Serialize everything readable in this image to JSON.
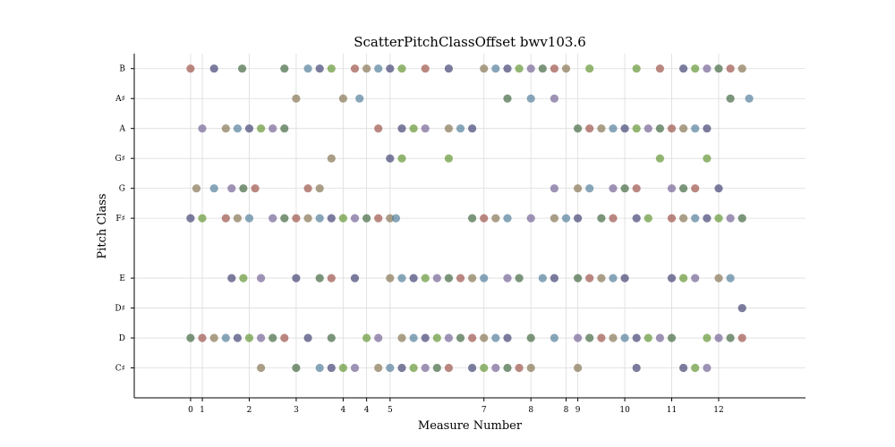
{
  "chart_data": {
    "type": "scatter",
    "title": "ScatterPitchClassOffset bwv103.6",
    "xlabel": "Measure Number",
    "ylabel": "Pitch Class",
    "xlim": [
      -1.2,
      13.1
    ],
    "ylim": [
      -1.0,
      10.5
    ],
    "grid": true,
    "x_ticks": [
      {
        "value": 0,
        "label": "0"
      },
      {
        "value": 0.25,
        "label": "1"
      },
      {
        "value": 1.25,
        "label": "2"
      },
      {
        "value": 2.25,
        "label": "3"
      },
      {
        "value": 3.25,
        "label": "4"
      },
      {
        "value": 3.75,
        "label": "4"
      },
      {
        "value": 4.25,
        "label": "5"
      },
      {
        "value": 6.25,
        "label": "7"
      },
      {
        "value": 7.25,
        "label": "8"
      },
      {
        "value": 8.0,
        "label": "8"
      },
      {
        "value": 8.25,
        "label": "9"
      },
      {
        "value": 9.25,
        "label": "10"
      },
      {
        "value": 10.25,
        "label": "11"
      },
      {
        "value": 11.25,
        "label": "12"
      }
    ],
    "y_ticks": [
      {
        "value": 0,
        "label": "C♯"
      },
      {
        "value": 1,
        "label": "D"
      },
      {
        "value": 2,
        "label": "D♯"
      },
      {
        "value": 3,
        "label": "E"
      },
      {
        "value": 5,
        "label": "F♯"
      },
      {
        "value": 6,
        "label": "G"
      },
      {
        "value": 7,
        "label": "G♯"
      },
      {
        "value": 8,
        "label": "A"
      },
      {
        "value": 9,
        "label": "A♯"
      },
      {
        "value": 10,
        "label": "B"
      }
    ],
    "palette": [
      "#a05a50",
      "#5a84a0",
      "#6a9a3c",
      "#4a6e4a",
      "#8a7a5a",
      "#4a4a78",
      "#7a6a9a"
    ],
    "points": [
      {
        "y": 10,
        "x": [
          0,
          0.5,
          1.1,
          2.0,
          2.5,
          2.75,
          3.0,
          3.5,
          3.75,
          4.0,
          4.25,
          4.5,
          5.0,
          5.5,
          6.25,
          6.5,
          6.75,
          7.0,
          7.25,
          7.5,
          7.75,
          8.0,
          8.5,
          9.5,
          10.0,
          10.5,
          10.75,
          11.0,
          11.25,
          11.5,
          11.75
        ]
      },
      {
        "y": 9,
        "x": [
          2.25,
          3.25,
          3.6,
          6.75,
          7.25,
          7.75,
          11.5,
          11.9
        ]
      },
      {
        "y": 8,
        "x": [
          0.25,
          0.75,
          1.0,
          1.25,
          1.5,
          1.75,
          2.0,
          4.0,
          4.5,
          4.75,
          5.0,
          5.5,
          5.75,
          6.0,
          8.25,
          8.5,
          8.75,
          9.0,
          9.25,
          9.5,
          9.75,
          10.0,
          10.25,
          10.5,
          10.75,
          11.0
        ]
      },
      {
        "y": 7,
        "x": [
          3.0,
          4.25,
          4.5,
          5.5,
          10.0,
          11.0
        ]
      },
      {
        "y": 6,
        "x": [
          0.125,
          0.5,
          0.875,
          1.125,
          1.375,
          2.5,
          2.75,
          7.75,
          8.25,
          8.5,
          9.0,
          9.25,
          9.5,
          10.25,
          10.5,
          10.75,
          11.25
        ]
      },
      {
        "y": 5,
        "x": [
          0,
          0.25,
          0.75,
          1.0,
          1.25,
          1.75,
          2.0,
          2.25,
          2.5,
          2.75,
          3.0,
          3.25,
          3.5,
          3.75,
          4.0,
          4.25,
          4.375,
          6.0,
          6.25,
          6.5,
          6.75,
          7.25,
          7.75,
          8.0,
          8.25,
          8.75,
          9.0,
          9.5,
          9.75,
          10.25,
          10.5,
          10.75,
          11.0,
          11.25,
          11.5,
          11.75
        ]
      },
      {
        "y": 3,
        "x": [
          0.875,
          1.125,
          1.5,
          2.25,
          2.75,
          3.0,
          3.5,
          4.25,
          4.5,
          4.75,
          5.0,
          5.25,
          5.5,
          5.75,
          6.0,
          6.25,
          6.75,
          7.0,
          7.5,
          7.75,
          8.25,
          8.5,
          8.75,
          9.0,
          9.25,
          10.25,
          10.5,
          10.75,
          11.25,
          11.5
        ]
      },
      {
        "y": 2,
        "x": [
          11.75
        ]
      },
      {
        "y": 1,
        "x": [
          0,
          0.25,
          0.5,
          0.75,
          1.0,
          1.25,
          1.5,
          1.75,
          2.0,
          2.5,
          3.0,
          3.75,
          4.0,
          4.5,
          4.75,
          5.0,
          5.25,
          5.5,
          5.75,
          6.0,
          6.25,
          6.5,
          6.75,
          7.25,
          7.75,
          8.25,
          8.5,
          8.75,
          9.0,
          9.25,
          9.5,
          9.75,
          10.0,
          10.25,
          11.0,
          11.25,
          11.5,
          11.75
        ]
      },
      {
        "y": 0,
        "x": [
          1.5,
          2.25,
          2.75,
          3.0,
          3.25,
          3.5,
          4.0,
          4.25,
          4.5,
          4.75,
          5.0,
          5.25,
          5.5,
          6.0,
          6.25,
          6.5,
          6.75,
          7.0,
          7.25,
          8.25,
          9.5,
          10.5,
          10.75,
          11.0
        ]
      }
    ]
  }
}
